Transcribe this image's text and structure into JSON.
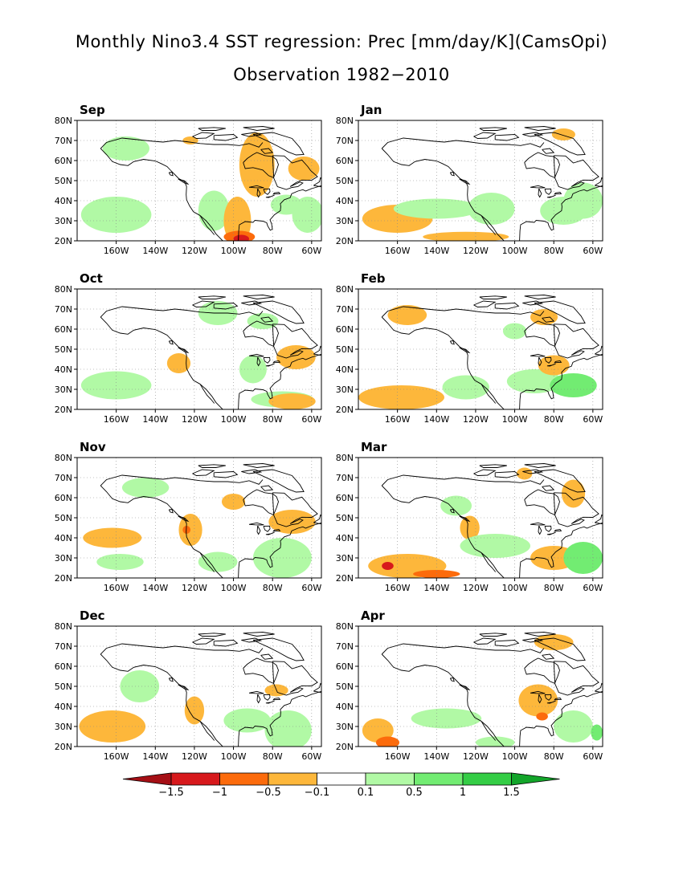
{
  "title": "Monthly Nino3.4 SST regression: Prec [mm/day/K](CamsOpi)",
  "subtitle": "Observation 1982−2010",
  "chart_data": {
    "type": "heatmap",
    "variable": "precipitation regression on Nino3.4 SST",
    "units": "mm/day/K",
    "panels": [
      "Sep",
      "Jan",
      "Oct",
      "Feb",
      "Nov",
      "Mar",
      "Dec",
      "Apr"
    ],
    "x_ticks": [
      "160W",
      "140W",
      "120W",
      "100W",
      "80W",
      "60W"
    ],
    "x_tick_values": [
      -160,
      -140,
      -120,
      -100,
      -80,
      -60
    ],
    "y_ticks": [
      "80N",
      "70N",
      "60N",
      "50N",
      "40N",
      "30N",
      "20N"
    ],
    "y_tick_values": [
      80,
      70,
      60,
      50,
      40,
      30,
      20
    ],
    "xlim": [
      -180,
      -55
    ],
    "ylim": [
      20,
      80
    ],
    "grid": true,
    "colorbar": {
      "labels": [
        "−1.5",
        "−1",
        "−0.5",
        "−0.1",
        "0.1",
        "0.5",
        "1",
        "1.5"
      ],
      "levels": [
        -1.5,
        -1,
        -0.5,
        -0.1,
        0.1,
        0.5,
        1,
        1.5
      ],
      "colors": [
        "#a50f15",
        "#d7191c",
        "#fc6b0c",
        "#fdb73b",
        "#ffffff",
        "#b1f9a5",
        "#72ec72",
        "#34cd45",
        "#13a52a"
      ],
      "extend": "both",
      "placement": "bottom"
    }
  },
  "colors": {
    "orange_light": "#fdb73b",
    "orange_mid": "#fc6b0c",
    "red": "#d7191c",
    "green_light": "#b1f9a5",
    "green_mid": "#72ec72",
    "green_dark": "#34cd45",
    "coast": "#000000",
    "grid": "#888888"
  }
}
